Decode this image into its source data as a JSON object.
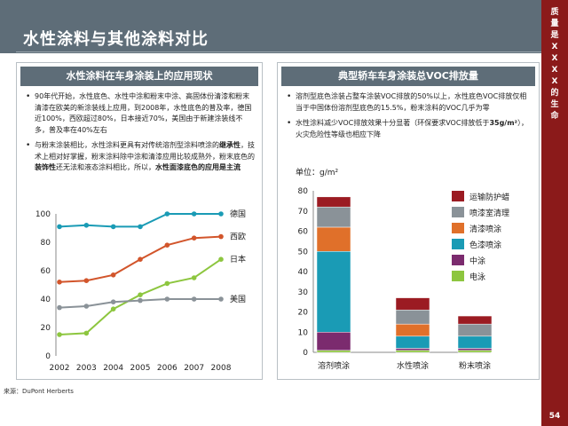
{
  "title": "水性涂料与其他涂料对比",
  "side_text": "质量是XXXX的生命",
  "page_number": "54",
  "left_panel": {
    "header": "水性涂料在车身涂装上的应用现状",
    "bullet1": "90年代开始，水性底色、水性中涂和粉末中涂、高固体份清漆和粉末清漆在欧美的新涂装线上应用，到2008年，水性底色的普及率，德国近100%，西欧超过80%，日本接近70%，美国由于新建涂装线不多，普及率在40%左右",
    "bullet2_pre": "与粉末涂装相比，水性涂料更具有对传统溶剂型涂料喷涂的",
    "bullet2_b1": "继承性",
    "bullet2_mid": "，技术上相对好掌握，粉末涂料除中涂和清漆应用比较成熟外，粉末底色的",
    "bullet2_b2": "装饰性",
    "bullet2_mid2": "还无法和液态涂料相比，所以，",
    "bullet2_b3": "水性面漆底色的应用是主流"
  },
  "right_panel": {
    "header": "典型轿车车身涂装总VOC排放量",
    "bullet1": "溶剂型底色涂装占整车涂装VOC排放的50%以上，水性底色VOC排放仅相当于中国体份溶剂型底色的15.5%，粉末涂料的VOC几乎为零",
    "bullet2_pre": "水性涂料减少VOC排放效果十分显著（环保要求VOC排放低于",
    "bullet2_b": "35g/m²",
    "bullet2_post": "），火灾危险性等级也相应下降",
    "unit": "单位：g/m²"
  },
  "source": "来源：DuPont Herberts",
  "chart_data": [
    {
      "type": "line",
      "x": [
        "2002",
        "2003",
        "2004",
        "2005",
        "2006",
        "2007",
        "2008"
      ],
      "ylim": [
        0,
        100
      ],
      "yticks": [
        0,
        20,
        40,
        60,
        80,
        100
      ],
      "series": [
        {
          "name": "德国",
          "color": "#1a9bb5",
          "values": [
            91,
            92,
            91,
            91,
            100,
            100,
            100
          ]
        },
        {
          "name": "西欧",
          "color": "#d2552b",
          "values": [
            52,
            53,
            57,
            68,
            78,
            83,
            84
          ]
        },
        {
          "name": "日本",
          "color": "#8dc63f",
          "values": [
            15,
            16,
            33,
            43,
            51,
            55,
            68
          ]
        },
        {
          "name": "美国",
          "color": "#8a9298",
          "values": [
            34,
            35,
            38,
            39,
            40,
            40,
            40
          ]
        }
      ]
    },
    {
      "type": "bar",
      "stacked": true,
      "categories": [
        "溶剂喷涂",
        "水性喷涂",
        "粉末喷涂"
      ],
      "ylim": [
        0,
        80
      ],
      "yticks": [
        0,
        10,
        20,
        30,
        40,
        50,
        60,
        70,
        80
      ],
      "series": [
        {
          "name": "电泳",
          "color": "#8dc63f",
          "values": [
            1,
            1,
            1
          ]
        },
        {
          "name": "中涂",
          "color": "#7b2b6e",
          "values": [
            9,
            1,
            1
          ]
        },
        {
          "name": "色漆喷涂",
          "color": "#1a9bb5",
          "values": [
            40,
            6,
            6
          ]
        },
        {
          "name": "清漆喷涂",
          "color": "#e0702a",
          "values": [
            12,
            6,
            0
          ]
        },
        {
          "name": "喷漆室清理",
          "color": "#8a9298",
          "values": [
            10,
            7,
            6
          ]
        },
        {
          "name": "运输防护蜡",
          "color": "#9b1b22",
          "values": [
            5,
            6,
            4
          ]
        }
      ]
    }
  ]
}
